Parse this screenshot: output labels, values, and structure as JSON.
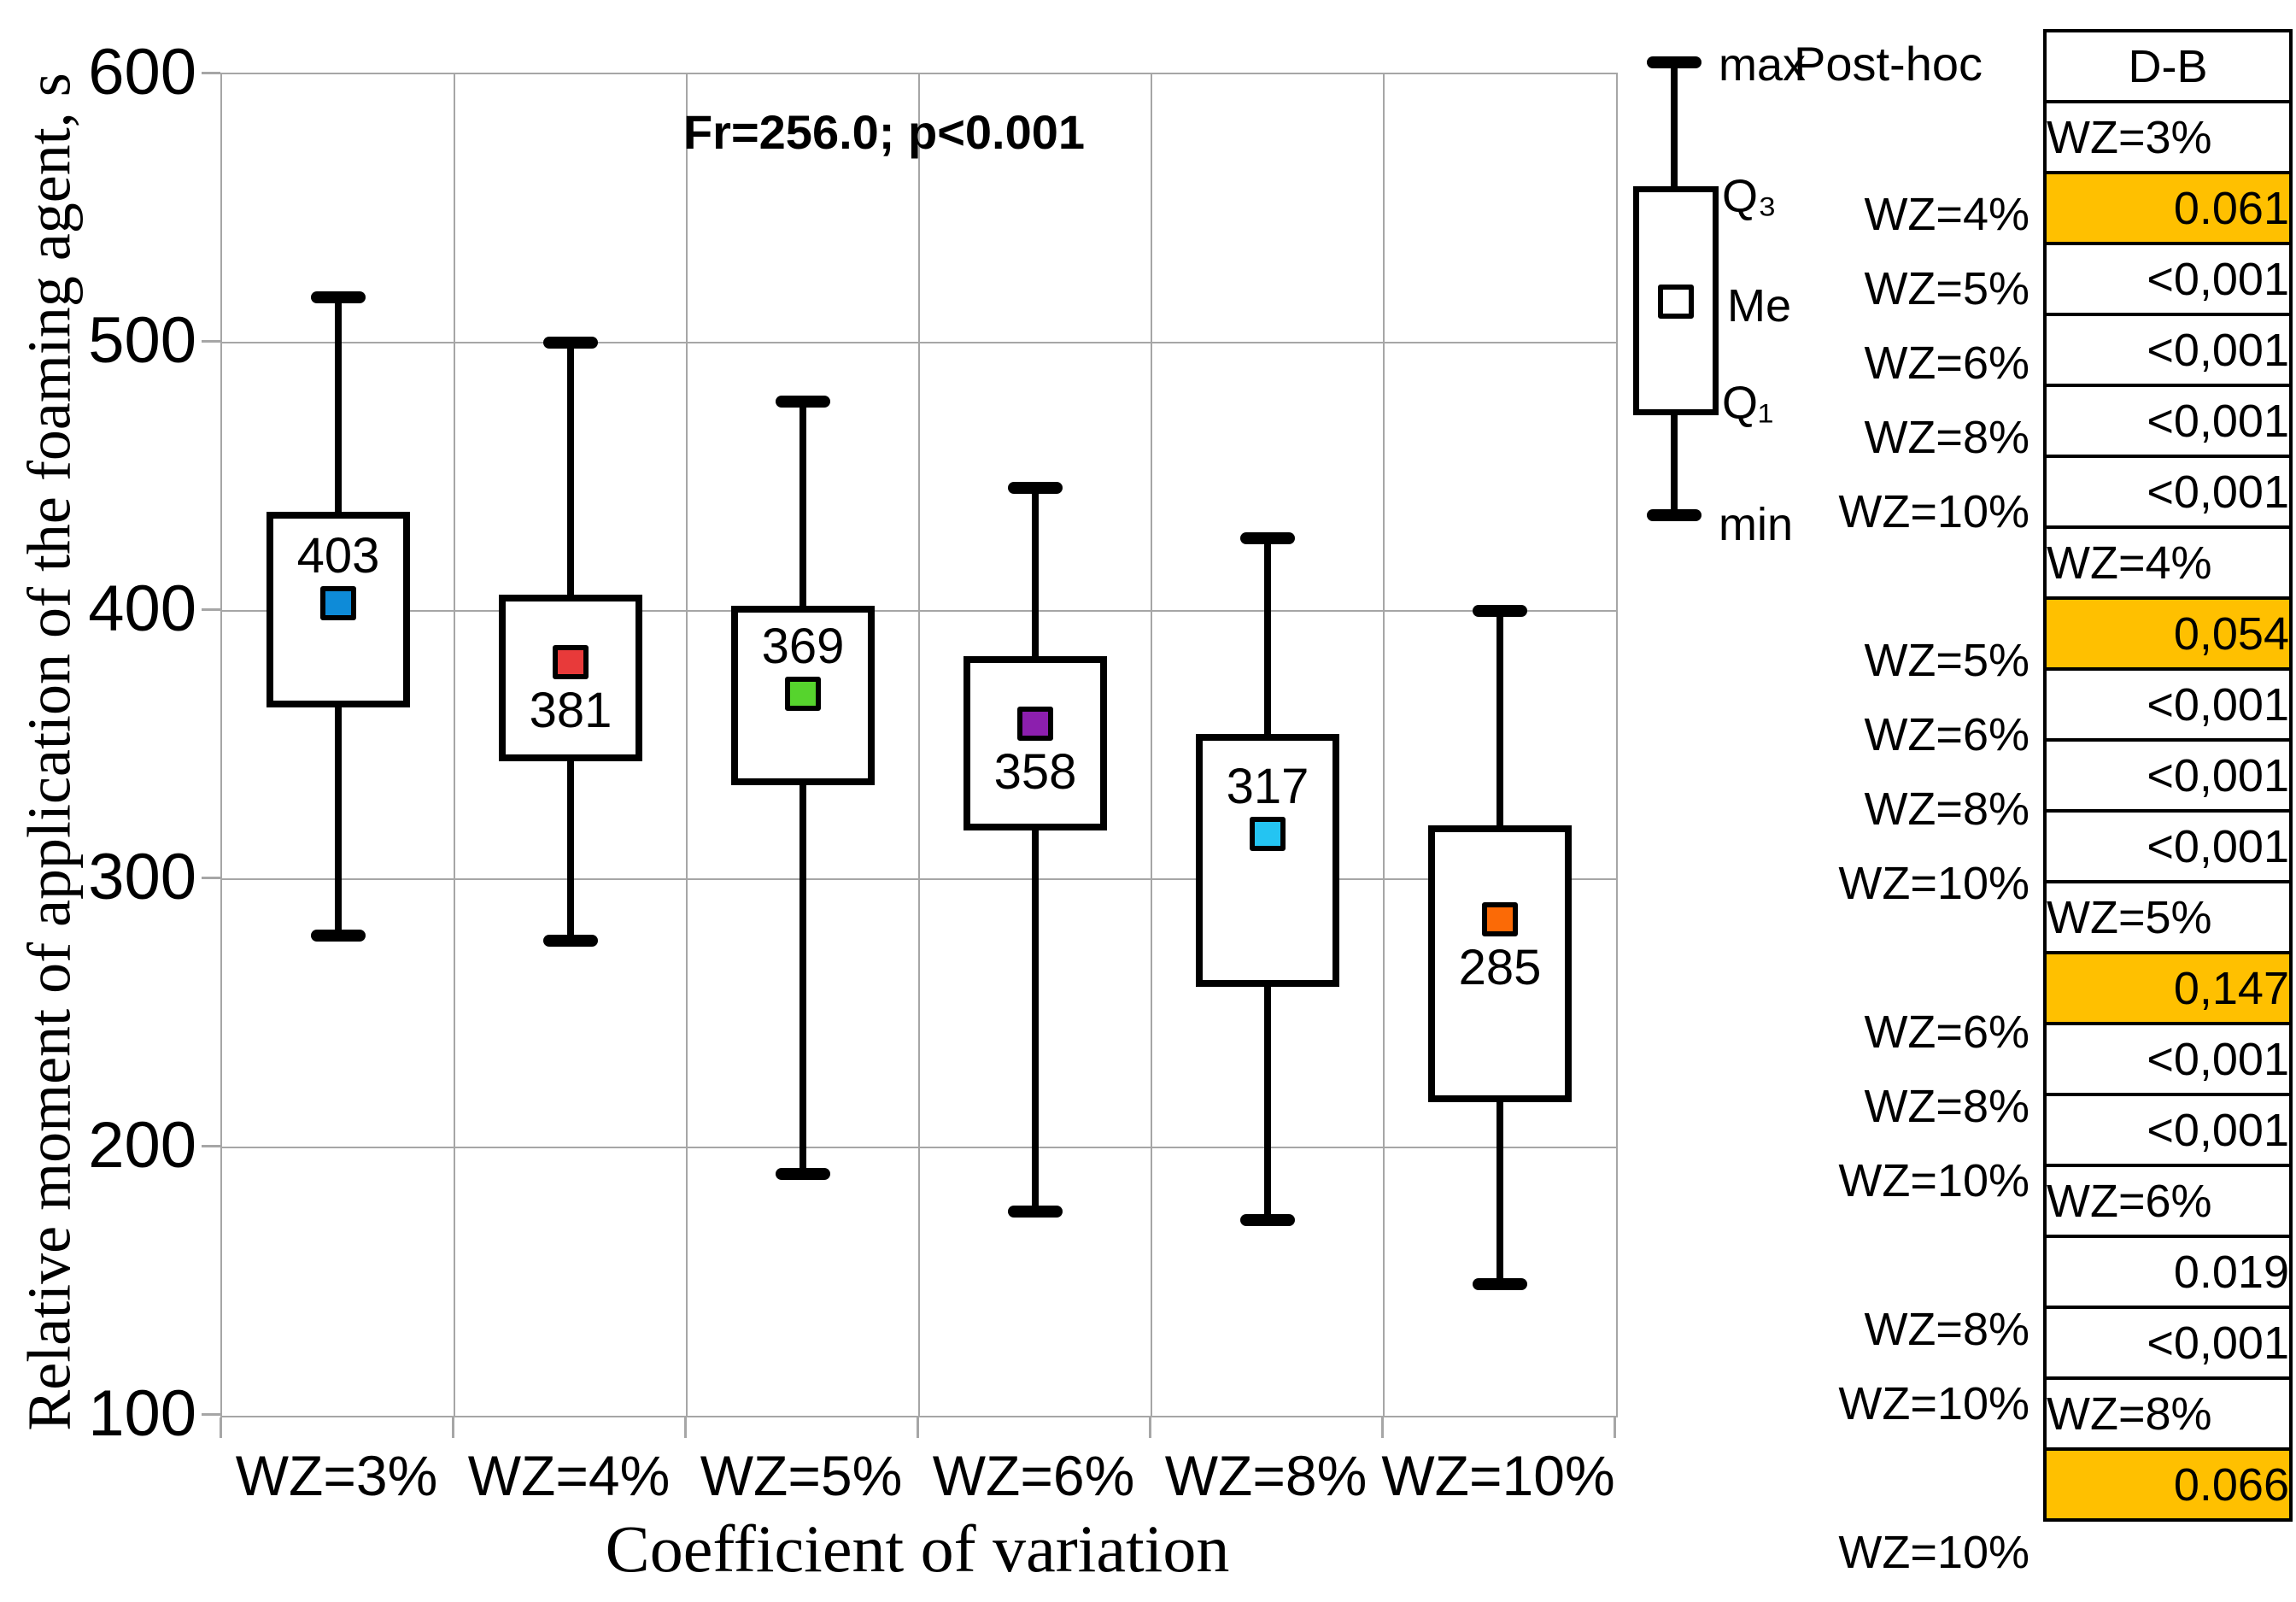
{
  "title": {
    "annotation": "Fr=256.0; p<0.001"
  },
  "axes": {
    "y_label": "Relative moment of application of the foaming agent, s",
    "x_label": "Coefficient of variation",
    "y_ticks": [
      600,
      500,
      400,
      300,
      200,
      100
    ],
    "ylim": [
      100,
      600
    ],
    "grid": "on",
    "grid_color": "#a6a6a6"
  },
  "legend": {
    "position": "top-right",
    "max": "max",
    "q3": "Q₃",
    "me": "Me",
    "q1": "Q₁",
    "min": "min"
  },
  "posthoc": {
    "label": "Post-hoc",
    "table_header": "D-B",
    "highlight_color": "#FFC000",
    "rows": [
      {
        "type": "group",
        "label": "",
        "text": "WZ=3%",
        "highlight": false
      },
      {
        "type": "value",
        "label": "WZ=4%",
        "text": "0.061",
        "highlight": true
      },
      {
        "type": "value",
        "label": "WZ=5%",
        "text": "<0,001",
        "highlight": false
      },
      {
        "type": "value",
        "label": "WZ=6%",
        "text": "<0,001",
        "highlight": false
      },
      {
        "type": "value",
        "label": "WZ=8%",
        "text": "<0,001",
        "highlight": false
      },
      {
        "type": "value",
        "label": "WZ=10%",
        "text": "<0,001",
        "highlight": false
      },
      {
        "type": "group",
        "label": "",
        "text": "WZ=4%",
        "highlight": false
      },
      {
        "type": "value",
        "label": "WZ=5%",
        "text": "0,054",
        "highlight": true
      },
      {
        "type": "value",
        "label": "WZ=6%",
        "text": "<0,001",
        "highlight": false
      },
      {
        "type": "value",
        "label": "WZ=8%",
        "text": "<0,001",
        "highlight": false
      },
      {
        "type": "value",
        "label": "WZ=10%",
        "text": "<0,001",
        "highlight": false
      },
      {
        "type": "group",
        "label": "",
        "text": "WZ=5%",
        "highlight": false
      },
      {
        "type": "value",
        "label": "WZ=6%",
        "text": "0,147",
        "highlight": true
      },
      {
        "type": "value",
        "label": "WZ=8%",
        "text": "<0,001",
        "highlight": false
      },
      {
        "type": "value",
        "label": "WZ=10%",
        "text": "<0,001",
        "highlight": false
      },
      {
        "type": "group",
        "label": "",
        "text": "WZ=6%",
        "highlight": false
      },
      {
        "type": "value",
        "label": "WZ=8%",
        "text": "0.019",
        "highlight": false
      },
      {
        "type": "value",
        "label": "WZ=10%",
        "text": "<0,001",
        "highlight": false
      },
      {
        "type": "group",
        "label": "",
        "text": "WZ=8%",
        "highlight": false
      },
      {
        "type": "value",
        "label": "WZ=10%",
        "text": "0.066",
        "highlight": true
      }
    ]
  },
  "chart_data": {
    "type": "box",
    "title": "Fr=256.0; p<0.001",
    "xlabel": "Coefficient of variation",
    "ylabel": "Relative moment of application of the foaming agent, s",
    "ylim": [
      100,
      600
    ],
    "categories": [
      "WZ=3%",
      "WZ=4%",
      "WZ=5%",
      "WZ=6%",
      "WZ=8%",
      "WZ=10%"
    ],
    "series": [
      {
        "category": "WZ=3%",
        "min": 279,
        "q1": 364,
        "median": 403,
        "q3": 437,
        "max": 517,
        "marker_color": "#0e8bd8",
        "label_position": "above"
      },
      {
        "category": "WZ=4%",
        "min": 277,
        "q1": 344,
        "median": 381,
        "q3": 406,
        "max": 500,
        "marker_color": "#e83a3a",
        "label_position": "below"
      },
      {
        "category": "WZ=5%",
        "min": 190,
        "q1": 335,
        "median": 369,
        "q3": 402,
        "max": 478,
        "marker_color": "#56d42d",
        "label_position": "above"
      },
      {
        "category": "WZ=6%",
        "min": 176,
        "q1": 318,
        "median": 358,
        "q3": 383,
        "max": 446,
        "marker_color": "#8c1fae",
        "label_position": "below"
      },
      {
        "category": "WZ=8%",
        "min": 173,
        "q1": 260,
        "median": 317,
        "q3": 354,
        "max": 427,
        "marker_color": "#24c4f2",
        "label_position": "above"
      },
      {
        "category": "WZ=10%",
        "min": 149,
        "q1": 217,
        "median": 285,
        "q3": 320,
        "max": 400,
        "marker_color": "#fb6a06",
        "label_position": "below"
      }
    ]
  }
}
